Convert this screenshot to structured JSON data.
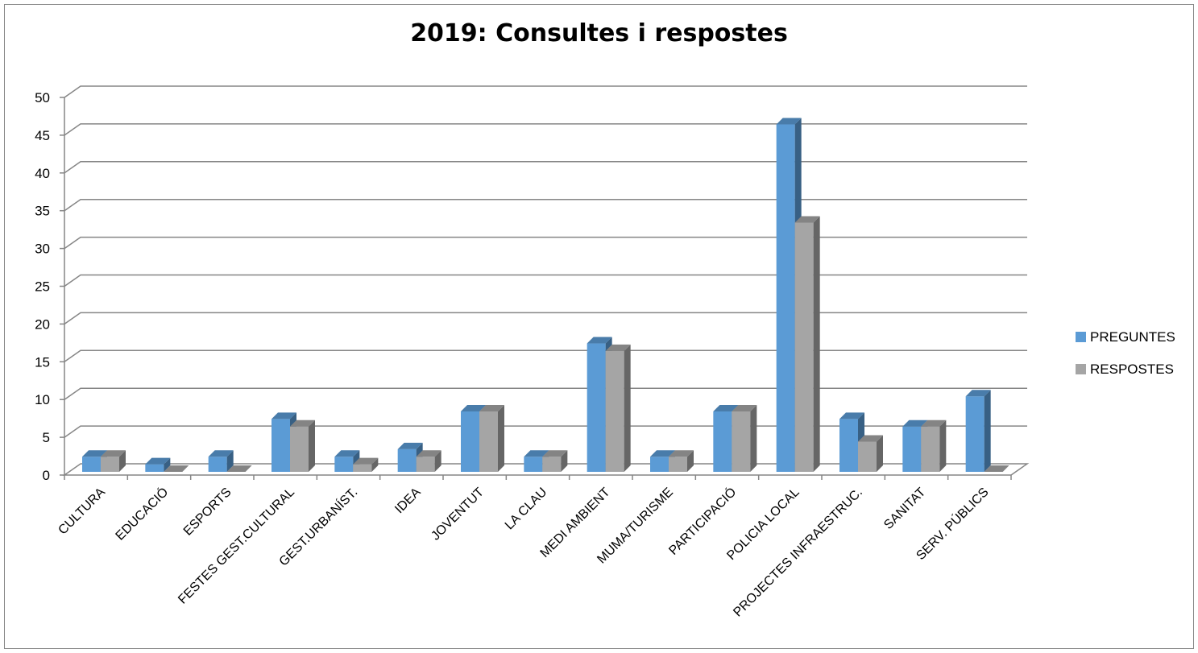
{
  "chart_data": {
    "type": "bar",
    "title": "2019:  Consultes i respostes",
    "categories": [
      "CULTURA",
      "EDUCACIÓ",
      "ESPORTS",
      "FESTES GEST.CULTURAL",
      "GEST.URBANÍST.",
      "IDEA",
      "JOVENTUT",
      "LA CLAU",
      "MEDI AMBIENT",
      "MUMA/TURISME",
      "PARTICIPACIÓ",
      "POLICIA LOCAL",
      "PROJECTES INFRAESTRUC.",
      "SANITAT",
      "SERV. PÚBLICS"
    ],
    "series": [
      {
        "name": "PREGUNTES",
        "color": "#5B9BD5",
        "values": [
          2,
          1,
          2,
          7,
          2,
          3,
          8,
          2,
          17,
          2,
          8,
          46,
          7,
          6,
          10
        ]
      },
      {
        "name": "RESPOSTES",
        "color": "#A5A5A5",
        "values": [
          2,
          0,
          0,
          6,
          1,
          2,
          8,
          2,
          16,
          2,
          8,
          33,
          4,
          6,
          0
        ]
      }
    ],
    "yticks": [
      0,
      5,
      10,
      15,
      20,
      25,
      30,
      35,
      40,
      45,
      50
    ],
    "ylim": [
      0,
      50
    ],
    "grid": true,
    "legend": "right"
  }
}
